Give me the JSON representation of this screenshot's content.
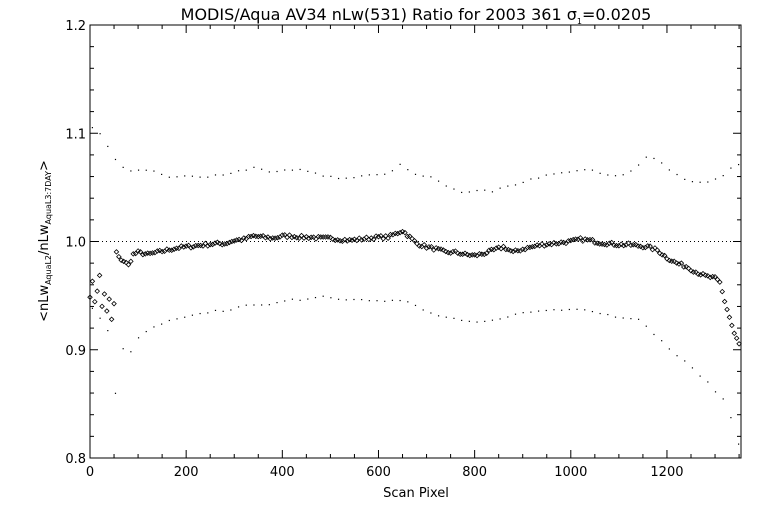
{
  "chart_data": {
    "type": "scatter",
    "title": "MODIS/Aqua AV34 nLw(531) Ratio for 2003 361 σ₁=0.0205",
    "title_parts": {
      "main": "MODIS/Aqua AV34 nLw(531) Ratio for 2003 361 ",
      "sigma": "σ",
      "sigma_sub": "1",
      "sigma_value": "=0.0205"
    },
    "xlabel": "Scan Pixel",
    "ylabel_parts": {
      "open": "<nLw",
      "sub1": "AquaL2",
      "mid": "/nLw",
      "sub2": "AquaL3:7DAY",
      "close": ">"
    },
    "xlim": [
      0,
      1354
    ],
    "ylim": [
      0.8,
      1.2
    ],
    "x_ticks": [
      0,
      200,
      400,
      600,
      800,
      1000,
      1200
    ],
    "y_ticks": [
      "0.8",
      "0.9",
      "1.0",
      "1.1",
      "1.2"
    ],
    "grid": false,
    "reference_line": {
      "y": 1.0,
      "style": "dotted"
    },
    "series": [
      {
        "role": "mean",
        "marker": "diamond",
        "step": 5,
        "points": [
          [
            0,
            0.95
          ],
          [
            5,
            0.962
          ],
          [
            10,
            0.945
          ],
          [
            15,
            0.955
          ],
          [
            20,
            0.968
          ],
          [
            25,
            0.94
          ],
          [
            30,
            0.952
          ],
          [
            35,
            0.935
          ],
          [
            40,
            0.946
          ],
          [
            45,
            0.928
          ],
          [
            50,
            0.942
          ],
          [
            55,
            0.99
          ],
          [
            60,
            0.985
          ],
          [
            70,
            0.982
          ],
          [
            80,
            0.978
          ],
          [
            90,
            0.988
          ],
          [
            100,
            0.99
          ],
          [
            120,
            0.988
          ],
          [
            140,
            0.99
          ],
          [
            160,
            0.992
          ],
          [
            180,
            0.994
          ],
          [
            200,
            0.995
          ],
          [
            220,
            0.996
          ],
          [
            240,
            0.997
          ],
          [
            260,
            0.998
          ],
          [
            280,
            0.998
          ],
          [
            300,
            1.001
          ],
          [
            320,
            1.002
          ],
          [
            340,
            1.005
          ],
          [
            360,
            1.004
          ],
          [
            380,
            1.003
          ],
          [
            400,
            1.005
          ],
          [
            420,
            1.005
          ],
          [
            440,
            1.004
          ],
          [
            460,
            1.004
          ],
          [
            480,
            1.003
          ],
          [
            500,
            1.003
          ],
          [
            520,
            1.002
          ],
          [
            540,
            1.001
          ],
          [
            560,
            1.002
          ],
          [
            580,
            1.003
          ],
          [
            600,
            1.004
          ],
          [
            620,
            1.004
          ],
          [
            640,
            1.008
          ],
          [
            650,
            1.01
          ],
          [
            660,
            1.006
          ],
          [
            680,
            0.998
          ],
          [
            700,
            0.995
          ],
          [
            720,
            0.993
          ],
          [
            740,
            0.99
          ],
          [
            760,
            0.99
          ],
          [
            780,
            0.988
          ],
          [
            800,
            0.987
          ],
          [
            820,
            0.989
          ],
          [
            840,
            0.992
          ],
          [
            860,
            0.995
          ],
          [
            880,
            0.99
          ],
          [
            900,
            0.993
          ],
          [
            920,
            0.995
          ],
          [
            940,
            0.997
          ],
          [
            960,
            0.998
          ],
          [
            980,
            0.999
          ],
          [
            1000,
            1.0
          ],
          [
            1020,
            1.002
          ],
          [
            1040,
            1.001
          ],
          [
            1060,
            0.999
          ],
          [
            1080,
            0.998
          ],
          [
            1100,
            0.997
          ],
          [
            1120,
            0.997
          ],
          [
            1140,
            0.996
          ],
          [
            1160,
            0.995
          ],
          [
            1180,
            0.992
          ],
          [
            1200,
            0.985
          ],
          [
            1220,
            0.98
          ],
          [
            1240,
            0.977
          ],
          [
            1260,
            0.972
          ],
          [
            1280,
            0.968
          ],
          [
            1300,
            0.966
          ],
          [
            1310,
            0.962
          ],
          [
            1320,
            0.945
          ],
          [
            1330,
            0.93
          ],
          [
            1340,
            0.915
          ],
          [
            1350,
            0.905
          ]
        ]
      },
      {
        "role": "upper",
        "marker": "dot",
        "step": 16,
        "points": [
          [
            5,
            1.105
          ],
          [
            20,
            1.1
          ],
          [
            40,
            1.085
          ],
          [
            60,
            1.07
          ],
          [
            80,
            1.065
          ],
          [
            100,
            1.066
          ],
          [
            120,
            1.065
          ],
          [
            140,
            1.064
          ],
          [
            160,
            1.06
          ],
          [
            180,
            1.06
          ],
          [
            200,
            1.06
          ],
          [
            220,
            1.06
          ],
          [
            240,
            1.058
          ],
          [
            260,
            1.061
          ],
          [
            280,
            1.062
          ],
          [
            300,
            1.064
          ],
          [
            320,
            1.066
          ],
          [
            340,
            1.068
          ],
          [
            360,
            1.066
          ],
          [
            380,
            1.063
          ],
          [
            400,
            1.066
          ],
          [
            420,
            1.066
          ],
          [
            440,
            1.066
          ],
          [
            460,
            1.064
          ],
          [
            480,
            1.061
          ],
          [
            500,
            1.06
          ],
          [
            520,
            1.058
          ],
          [
            540,
            1.059
          ],
          [
            560,
            1.06
          ],
          [
            580,
            1.062
          ],
          [
            600,
            1.061
          ],
          [
            620,
            1.062
          ],
          [
            640,
            1.07
          ],
          [
            650,
            1.072
          ],
          [
            660,
            1.066
          ],
          [
            680,
            1.062
          ],
          [
            700,
            1.06
          ],
          [
            720,
            1.058
          ],
          [
            740,
            1.052
          ],
          [
            760,
            1.048
          ],
          [
            780,
            1.045
          ],
          [
            800,
            1.046
          ],
          [
            820,
            1.048
          ],
          [
            840,
            1.046
          ],
          [
            860,
            1.05
          ],
          [
            880,
            1.052
          ],
          [
            900,
            1.055
          ],
          [
            920,
            1.058
          ],
          [
            940,
            1.06
          ],
          [
            960,
            1.062
          ],
          [
            980,
            1.063
          ],
          [
            1000,
            1.065
          ],
          [
            1020,
            1.066
          ],
          [
            1040,
            1.066
          ],
          [
            1060,
            1.063
          ],
          [
            1080,
            1.061
          ],
          [
            1100,
            1.06
          ],
          [
            1120,
            1.063
          ],
          [
            1140,
            1.07
          ],
          [
            1160,
            1.08
          ],
          [
            1180,
            1.076
          ],
          [
            1200,
            1.068
          ],
          [
            1220,
            1.062
          ],
          [
            1240,
            1.057
          ],
          [
            1260,
            1.055
          ],
          [
            1280,
            1.054
          ],
          [
            1300,
            1.057
          ],
          [
            1320,
            1.062
          ],
          [
            1335,
            1.068
          ],
          [
            1350,
            1.072
          ]
        ]
      },
      {
        "role": "lower",
        "marker": "dot",
        "step": 16,
        "points": [
          [
            5,
            0.938
          ],
          [
            20,
            0.93
          ],
          [
            40,
            0.915
          ],
          [
            50,
            0.84
          ],
          [
            60,
            0.905
          ],
          [
            80,
            0.895
          ],
          [
            100,
            0.91
          ],
          [
            120,
            0.918
          ],
          [
            140,
            0.922
          ],
          [
            160,
            0.926
          ],
          [
            180,
            0.928
          ],
          [
            200,
            0.93
          ],
          [
            220,
            0.932
          ],
          [
            240,
            0.934
          ],
          [
            260,
            0.936
          ],
          [
            280,
            0.936
          ],
          [
            300,
            0.938
          ],
          [
            320,
            0.94
          ],
          [
            340,
            0.942
          ],
          [
            360,
            0.942
          ],
          [
            380,
            0.942
          ],
          [
            400,
            0.944
          ],
          [
            420,
            0.946
          ],
          [
            440,
            0.946
          ],
          [
            460,
            0.948
          ],
          [
            480,
            0.95
          ],
          [
            500,
            0.948
          ],
          [
            520,
            0.947
          ],
          [
            540,
            0.946
          ],
          [
            560,
            0.947
          ],
          [
            580,
            0.946
          ],
          [
            600,
            0.946
          ],
          [
            620,
            0.945
          ],
          [
            640,
            0.946
          ],
          [
            660,
            0.944
          ],
          [
            680,
            0.94
          ],
          [
            700,
            0.935
          ],
          [
            720,
            0.932
          ],
          [
            740,
            0.93
          ],
          [
            760,
            0.928
          ],
          [
            780,
            0.926
          ],
          [
            800,
            0.925
          ],
          [
            820,
            0.926
          ],
          [
            840,
            0.927
          ],
          [
            860,
            0.93
          ],
          [
            880,
            0.932
          ],
          [
            900,
            0.934
          ],
          [
            920,
            0.935
          ],
          [
            940,
            0.936
          ],
          [
            960,
            0.937
          ],
          [
            980,
            0.937
          ],
          [
            1000,
            0.938
          ],
          [
            1020,
            0.938
          ],
          [
            1040,
            0.936
          ],
          [
            1060,
            0.934
          ],
          [
            1080,
            0.932
          ],
          [
            1100,
            0.93
          ],
          [
            1120,
            0.93
          ],
          [
            1140,
            0.928
          ],
          [
            1160,
            0.92
          ],
          [
            1180,
            0.912
          ],
          [
            1200,
            0.903
          ],
          [
            1220,
            0.895
          ],
          [
            1240,
            0.888
          ],
          [
            1260,
            0.88
          ],
          [
            1280,
            0.872
          ],
          [
            1300,
            0.862
          ],
          [
            1320,
            0.853
          ],
          [
            1335,
            0.835
          ],
          [
            1350,
            0.812
          ]
        ]
      }
    ]
  }
}
